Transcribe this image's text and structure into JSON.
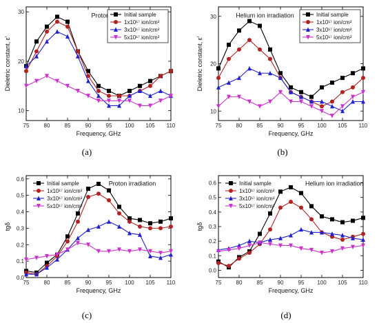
{
  "figure": {
    "panel_labels": [
      "(a)",
      "(b)",
      "(c)",
      "(d)"
    ]
  },
  "chart_data": [
    {
      "type": "line",
      "panel": "(a)",
      "annotation": "Proton irradiation",
      "xlabel": "Frequency, GHz",
      "ylabel": "Dieletric constant, ε'",
      "xlim": [
        75,
        110
      ],
      "ylim": [
        8,
        31
      ],
      "xticks": [
        75,
        80,
        85,
        90,
        95,
        100,
        105,
        110
      ],
      "yticks": [
        10,
        20,
        30
      ],
      "legend": "top-right",
      "x": [
        75,
        77.5,
        80,
        82.5,
        85,
        87.5,
        90,
        92.5,
        95,
        97.5,
        100,
        102.5,
        105,
        107.5,
        110
      ],
      "series": [
        {
          "name": "Initial sample",
          "marker": "square",
          "color": "#000000",
          "values": [
            19,
            24,
            27,
            29,
            28,
            22,
            18,
            15,
            14,
            13,
            14,
            15,
            16,
            17,
            18
          ]
        },
        {
          "name": "1x10¹⁷ ion/cm²",
          "marker": "circle",
          "color": "#b22222",
          "values": [
            18,
            22,
            26,
            28,
            27,
            22,
            17,
            14,
            13,
            13,
            13,
            14,
            15,
            17,
            18
          ]
        },
        {
          "name": "3x10¹⁷ ion/cm²",
          "marker": "triangle-up",
          "color": "#2222cc",
          "values": [
            19,
            21,
            24,
            26,
            25,
            21,
            16,
            13,
            11,
            11,
            13,
            14,
            13,
            14,
            13
          ]
        },
        {
          "name": "5x10¹⁷ ion/cm²",
          "marker": "triangle-down",
          "color": "#cc33cc",
          "values": [
            15,
            16,
            17,
            16,
            15,
            14,
            13,
            12,
            12,
            12,
            12,
            11,
            11,
            12,
            13
          ]
        }
      ]
    },
    {
      "type": "line",
      "panel": "(b)",
      "annotation": "Helium ion irradiation",
      "xlabel": "Frequency, GHz",
      "ylabel": "Dieletric constant, ε'",
      "xlim": [
        75,
        110
      ],
      "ylim": [
        8,
        32
      ],
      "xticks": [
        75,
        80,
        85,
        90,
        95,
        100,
        105,
        110
      ],
      "yticks": [
        10,
        20,
        30
      ],
      "legend": "top-right",
      "x": [
        75,
        77.5,
        80,
        82.5,
        85,
        87.5,
        90,
        92.5,
        95,
        97.5,
        100,
        102.5,
        105,
        107.5,
        110
      ],
      "series": [
        {
          "name": "Initial sample",
          "marker": "square",
          "color": "#000000",
          "values": [
            19,
            24,
            27,
            29,
            28,
            23,
            18,
            15,
            14,
            13,
            15,
            16,
            17,
            18,
            19
          ]
        },
        {
          "name": "1x10¹⁷ ion/cm²",
          "marker": "circle",
          "color": "#b22222",
          "values": [
            17,
            21,
            23,
            25,
            23,
            21,
            17,
            14,
            13,
            12,
            11,
            12,
            14,
            15,
            17
          ]
        },
        {
          "name": "3x10¹⁷ ion/cm²",
          "marker": "triangle-up",
          "color": "#2222cc",
          "values": [
            15,
            16,
            17,
            19,
            18,
            18,
            17,
            14,
            13,
            12,
            12,
            11,
            10,
            12,
            12
          ]
        },
        {
          "name": "5x10¹⁷ ion/cm²",
          "marker": "triangle-down",
          "color": "#cc33cc",
          "values": [
            11,
            13,
            13,
            12,
            11,
            12,
            14,
            12,
            12,
            11,
            10,
            9,
            11,
            13,
            14
          ]
        }
      ]
    },
    {
      "type": "line",
      "panel": "(c)",
      "annotation": "Proton irradiation",
      "xlabel": "Frequency, GHz",
      "ylabel": "tgδ",
      "xlim": [
        75,
        110
      ],
      "ylim": [
        0,
        0.62
      ],
      "xticks": [
        75,
        80,
        85,
        90,
        95,
        100,
        105,
        110
      ],
      "yticks": [
        0.0,
        0.1,
        0.2,
        0.3,
        0.4,
        0.5,
        0.6
      ],
      "legend": "top-left",
      "x": [
        75,
        77.5,
        80,
        82.5,
        85,
        87.5,
        90,
        92.5,
        95,
        97.5,
        100,
        102.5,
        105,
        107.5,
        110
      ],
      "series": [
        {
          "name": "Initial sample",
          "marker": "square",
          "color": "#000000",
          "values": [
            0.04,
            0.03,
            0.09,
            0.14,
            0.25,
            0.39,
            0.54,
            0.57,
            0.53,
            0.43,
            0.36,
            0.35,
            0.33,
            0.34,
            0.36
          ]
        },
        {
          "name": "1x10¹⁷ ion/cm²",
          "marker": "circle",
          "color": "#b22222",
          "values": [
            0.03,
            0.02,
            0.07,
            0.13,
            0.22,
            0.34,
            0.49,
            0.51,
            0.47,
            0.39,
            0.34,
            0.31,
            0.3,
            0.3,
            0.31
          ]
        },
        {
          "name": "3x10¹⁷ ion/cm²",
          "marker": "triangle-up",
          "color": "#2222cc",
          "values": [
            0.02,
            0.02,
            0.06,
            0.11,
            0.17,
            0.24,
            0.29,
            0.31,
            0.34,
            0.31,
            0.27,
            0.26,
            0.13,
            0.12,
            0.14
          ]
        },
        {
          "name": "5x10¹⁷ ion/cm²",
          "marker": "triangle-down",
          "color": "#cc33cc",
          "values": [
            0.11,
            0.12,
            0.13,
            0.14,
            0.17,
            0.21,
            0.2,
            0.16,
            0.16,
            0.17,
            0.16,
            0.17,
            0.16,
            0.15,
            0.16
          ]
        }
      ]
    },
    {
      "type": "line",
      "panel": "(d)",
      "annotation": "Helium ion irradiation",
      "xlabel": "Frequency, GHz",
      "ylabel": "tgδ",
      "xlim": [
        75,
        110
      ],
      "ylim": [
        -0.05,
        0.65
      ],
      "xticks": [
        75,
        80,
        85,
        90,
        95,
        100,
        105,
        110
      ],
      "yticks": [
        0.0,
        0.1,
        0.2,
        0.3,
        0.4,
        0.5,
        0.6
      ],
      "legend": "top-left",
      "x": [
        75,
        77.5,
        80,
        82.5,
        85,
        87.5,
        90,
        92.5,
        95,
        97.5,
        100,
        102.5,
        105,
        107.5,
        110
      ],
      "series": [
        {
          "name": "Initial sample",
          "marker": "square",
          "color": "#000000",
          "values": [
            0.06,
            0.02,
            0.09,
            0.13,
            0.25,
            0.39,
            0.54,
            0.57,
            0.53,
            0.44,
            0.37,
            0.35,
            0.33,
            0.34,
            0.36
          ]
        },
        {
          "name": "1x10¹⁷ ion/cm²",
          "marker": "circle",
          "color": "#b22222",
          "values": [
            0.05,
            0.03,
            0.08,
            0.12,
            0.18,
            0.28,
            0.43,
            0.47,
            0.43,
            0.35,
            0.26,
            0.23,
            0.21,
            0.23,
            0.25
          ]
        },
        {
          "name": "3x10¹⁷ ion/cm²",
          "marker": "triangle-up",
          "color": "#2222cc",
          "values": [
            0.14,
            0.15,
            0.17,
            0.2,
            0.19,
            0.21,
            0.22,
            0.24,
            0.28,
            0.26,
            0.26,
            0.25,
            0.24,
            0.22,
            0.21
          ]
        },
        {
          "name": "5x10¹⁷ ion/cm²",
          "marker": "triangle-down",
          "color": "#cc33cc",
          "values": [
            0.13,
            0.14,
            0.15,
            0.17,
            0.19,
            0.18,
            0.17,
            0.17,
            0.15,
            0.14,
            0.12,
            0.13,
            0.15,
            0.16,
            0.17
          ]
        }
      ]
    }
  ]
}
